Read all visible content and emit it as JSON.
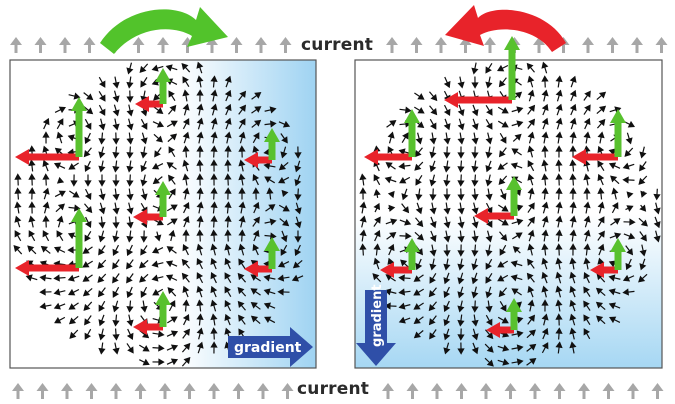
{
  "labels": {
    "current_top": "current",
    "current_bottom": "current",
    "gradient_left": "gradient",
    "gradient_right": "gradient"
  },
  "colors": {
    "force_arrow_red": "#e8232a",
    "force_arrow_green": "#58c12e",
    "rotation_left_panel": "#52c32b",
    "rotation_right_panel": "#e8232a",
    "gradient_arrow": "#2f4fa8",
    "gradient_tint": "#9fd3f2",
    "current_arrow": "#a7a7a7",
    "field_arrow": "#111111"
  },
  "icons": {
    "current": "up-arrow-icon",
    "field": "small-arrow-icon",
    "rotation_left": "clockwise-arrow-icon",
    "rotation_right": "counterclockwise-arrow-icon"
  }
}
